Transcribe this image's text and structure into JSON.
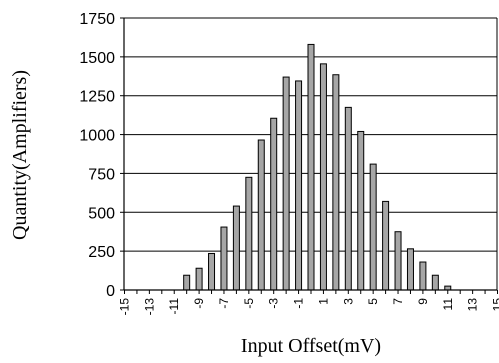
{
  "chart_data": {
    "type": "bar",
    "title": "",
    "xlabel": "Input Offset(mV)",
    "ylabel": "Quantity(Amplifiers)",
    "ylim": [
      0,
      1750
    ],
    "yticks": [
      "0",
      "250",
      "500",
      "750",
      "1000",
      "1250",
      "1500",
      "1750"
    ],
    "xticks": [
      "-15",
      "-13",
      "-11",
      "-9",
      "-7",
      "-5",
      "-3",
      "-1",
      "1",
      "3",
      "5",
      "7",
      "9",
      "11",
      "13",
      "15"
    ],
    "grid": "horizontal",
    "bar_color": "#a6a6a6",
    "categories": [
      -15,
      -14,
      -13,
      -12,
      -11,
      -10,
      -9,
      -8,
      -7,
      -6,
      -5,
      -4,
      -3,
      -2,
      -1,
      0,
      1,
      2,
      3,
      4,
      5,
      6,
      7,
      8,
      9,
      10,
      11,
      12,
      13,
      14,
      15
    ],
    "values": [
      0,
      0,
      0,
      0,
      0,
      95,
      140,
      235,
      405,
      540,
      725,
      965,
      1105,
      1370,
      1345,
      1580,
      1455,
      1385,
      1175,
      1020,
      810,
      570,
      375,
      265,
      180,
      95,
      25,
      0,
      0,
      0,
      0
    ]
  }
}
